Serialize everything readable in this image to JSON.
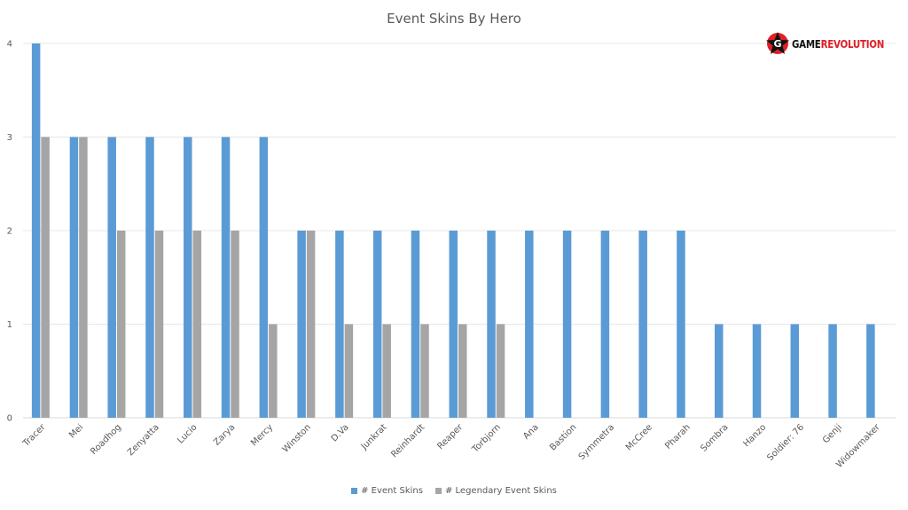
{
  "logo": {
    "text_part1": "GAME",
    "text_part2": "REVOLUTION",
    "icon": "star-icon"
  },
  "chart_data": {
    "type": "bar",
    "title": "Event Skins By Hero",
    "xlabel": "",
    "ylabel": "",
    "ylim": [
      0,
      4
    ],
    "yticks": [
      "0",
      "1",
      "2",
      "3",
      "4"
    ],
    "grid": true,
    "legend_position": "bottom",
    "categories": [
      "Tracer",
      "Mei",
      "Roadhog",
      "Zenyatta",
      "Lucio",
      "Zarya",
      "Mercy",
      "Winston",
      "D.Va",
      "Junkrat",
      "Reinhardt",
      "Reaper",
      "Torbjorn",
      "Ana",
      "Bastion",
      "Symmetra",
      "McCree",
      "Pharah",
      "Sombra",
      "Hanzo",
      "Soldier: 76",
      "Genji",
      "Widowmaker"
    ],
    "series": [
      {
        "name": "# Event Skins",
        "color": "#5b9bd5",
        "values": [
          4,
          3,
          3,
          3,
          3,
          3,
          3,
          2,
          2,
          2,
          2,
          2,
          2,
          2,
          2,
          2,
          2,
          2,
          1,
          1,
          1,
          1,
          1
        ]
      },
      {
        "name": "# Legendary Event Skins",
        "color": "#a5a5a5",
        "values": [
          3,
          3,
          2,
          2,
          2,
          2,
          1,
          2,
          1,
          1,
          1,
          1,
          1,
          0,
          0,
          0,
          0,
          0,
          0,
          0,
          0,
          0,
          0
        ]
      }
    ]
  }
}
